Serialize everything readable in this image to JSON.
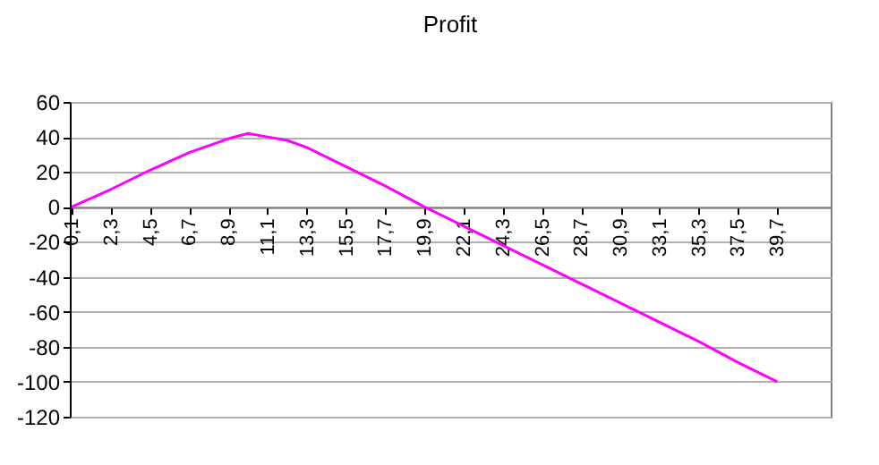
{
  "chart_data": {
    "type": "line",
    "title": "Profit",
    "x": [
      0.1,
      2.3,
      4.5,
      6.7,
      8.9,
      10,
      11.1,
      12.2,
      13.3,
      15.5,
      17.7,
      19.9,
      22.1,
      24.3,
      26.5,
      28.7,
      30.9,
      33.1,
      35.3,
      37.5,
      39.7
    ],
    "series": [
      {
        "color": "#ff00ff",
        "values": [
          0,
          10,
          21,
          31,
          39,
          42,
          40,
          38,
          34,
          23,
          12,
          0,
          -11,
          -22,
          -33,
          -44,
          -55,
          -66,
          -77,
          -89,
          -100
        ]
      }
    ],
    "xlim": [
      0,
      42.7
    ],
    "xticks": [
      {
        "value": 0.1,
        "label": "0,1"
      },
      {
        "value": 2.3,
        "label": "2,3"
      },
      {
        "value": 4.5,
        "label": "4,5"
      },
      {
        "value": 6.7,
        "label": "6,7"
      },
      {
        "value": 8.9,
        "label": "8,9"
      },
      {
        "value": 11.1,
        "label": "11,1"
      },
      {
        "value": 13.3,
        "label": "13,3"
      },
      {
        "value": 15.5,
        "label": "15,5"
      },
      {
        "value": 17.7,
        "label": "17,7"
      },
      {
        "value": 19.9,
        "label": "19,9"
      },
      {
        "value": 22.1,
        "label": "22,1"
      },
      {
        "value": 24.3,
        "label": "24,3"
      },
      {
        "value": 26.5,
        "label": "26,5"
      },
      {
        "value": 28.7,
        "label": "28,7"
      },
      {
        "value": 30.9,
        "label": "30,9"
      },
      {
        "value": 33.1,
        "label": "33,1"
      },
      {
        "value": 35.3,
        "label": "35,3"
      },
      {
        "value": 37.5,
        "label": "37,5"
      },
      {
        "value": 39.7,
        "label": "39,7"
      }
    ],
    "ylim": [
      -120,
      60
    ],
    "yticks": [
      -120,
      -100,
      -80,
      -60,
      -40,
      -20,
      0,
      20,
      40,
      60
    ],
    "grid": "y",
    "marker": "none",
    "line_style": "solid"
  }
}
